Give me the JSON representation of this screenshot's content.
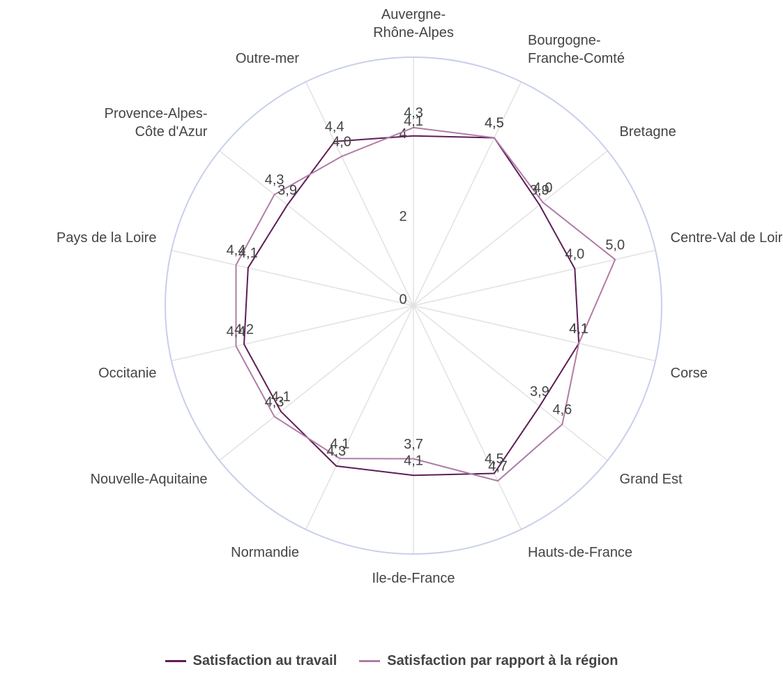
{
  "chart_data": {
    "type": "radar",
    "categories": [
      "Auvergne-Rhône-Alpes",
      "Bourgogne-Franche-Comté",
      "Bretagne",
      "Centre-Val de Loire",
      "Corse",
      "Grand Est",
      "Hauts-de-France",
      "Ile-de-France",
      "Normandie",
      "Nouvelle-Aquitaine",
      "Occitanie",
      "Pays de la Loire",
      "Provence-Alpes-Côte d'Azur",
      "Outre-mer"
    ],
    "series": [
      {
        "name": "Satisfaction au travail",
        "color": "#5e1d56",
        "values": [
          4.1,
          4.5,
          3.9,
          4.0,
          4.1,
          3.9,
          4.5,
          4.1,
          4.3,
          4.1,
          4.2,
          4.1,
          3.9,
          4.4
        ],
        "value_labels": [
          "4,1",
          "4,5",
          "3,9",
          "4,0",
          "4,1",
          "3,9",
          "4,5",
          "4,1",
          "4,3",
          "4,1",
          "4,2",
          "4,1",
          "3,9",
          "4,4"
        ]
      },
      {
        "name": "Satisfaction par rapport à la région",
        "color": "#b07ca6",
        "values": [
          4.3,
          4.5,
          4.0,
          5.0,
          4.1,
          4.6,
          4.7,
          3.7,
          4.1,
          4.3,
          4.4,
          4.4,
          4.3,
          4.0
        ],
        "value_labels": [
          "4,3",
          "4,5",
          "4,0",
          "5,0",
          "4,1",
          "4,6",
          "4,7",
          "3,7",
          "4,1",
          "4,3",
          "4,4",
          "4,4",
          "4,3",
          "4,0"
        ]
      }
    ],
    "ylim": [
      0,
      6
    ],
    "yticks": [
      0,
      2,
      4
    ]
  }
}
